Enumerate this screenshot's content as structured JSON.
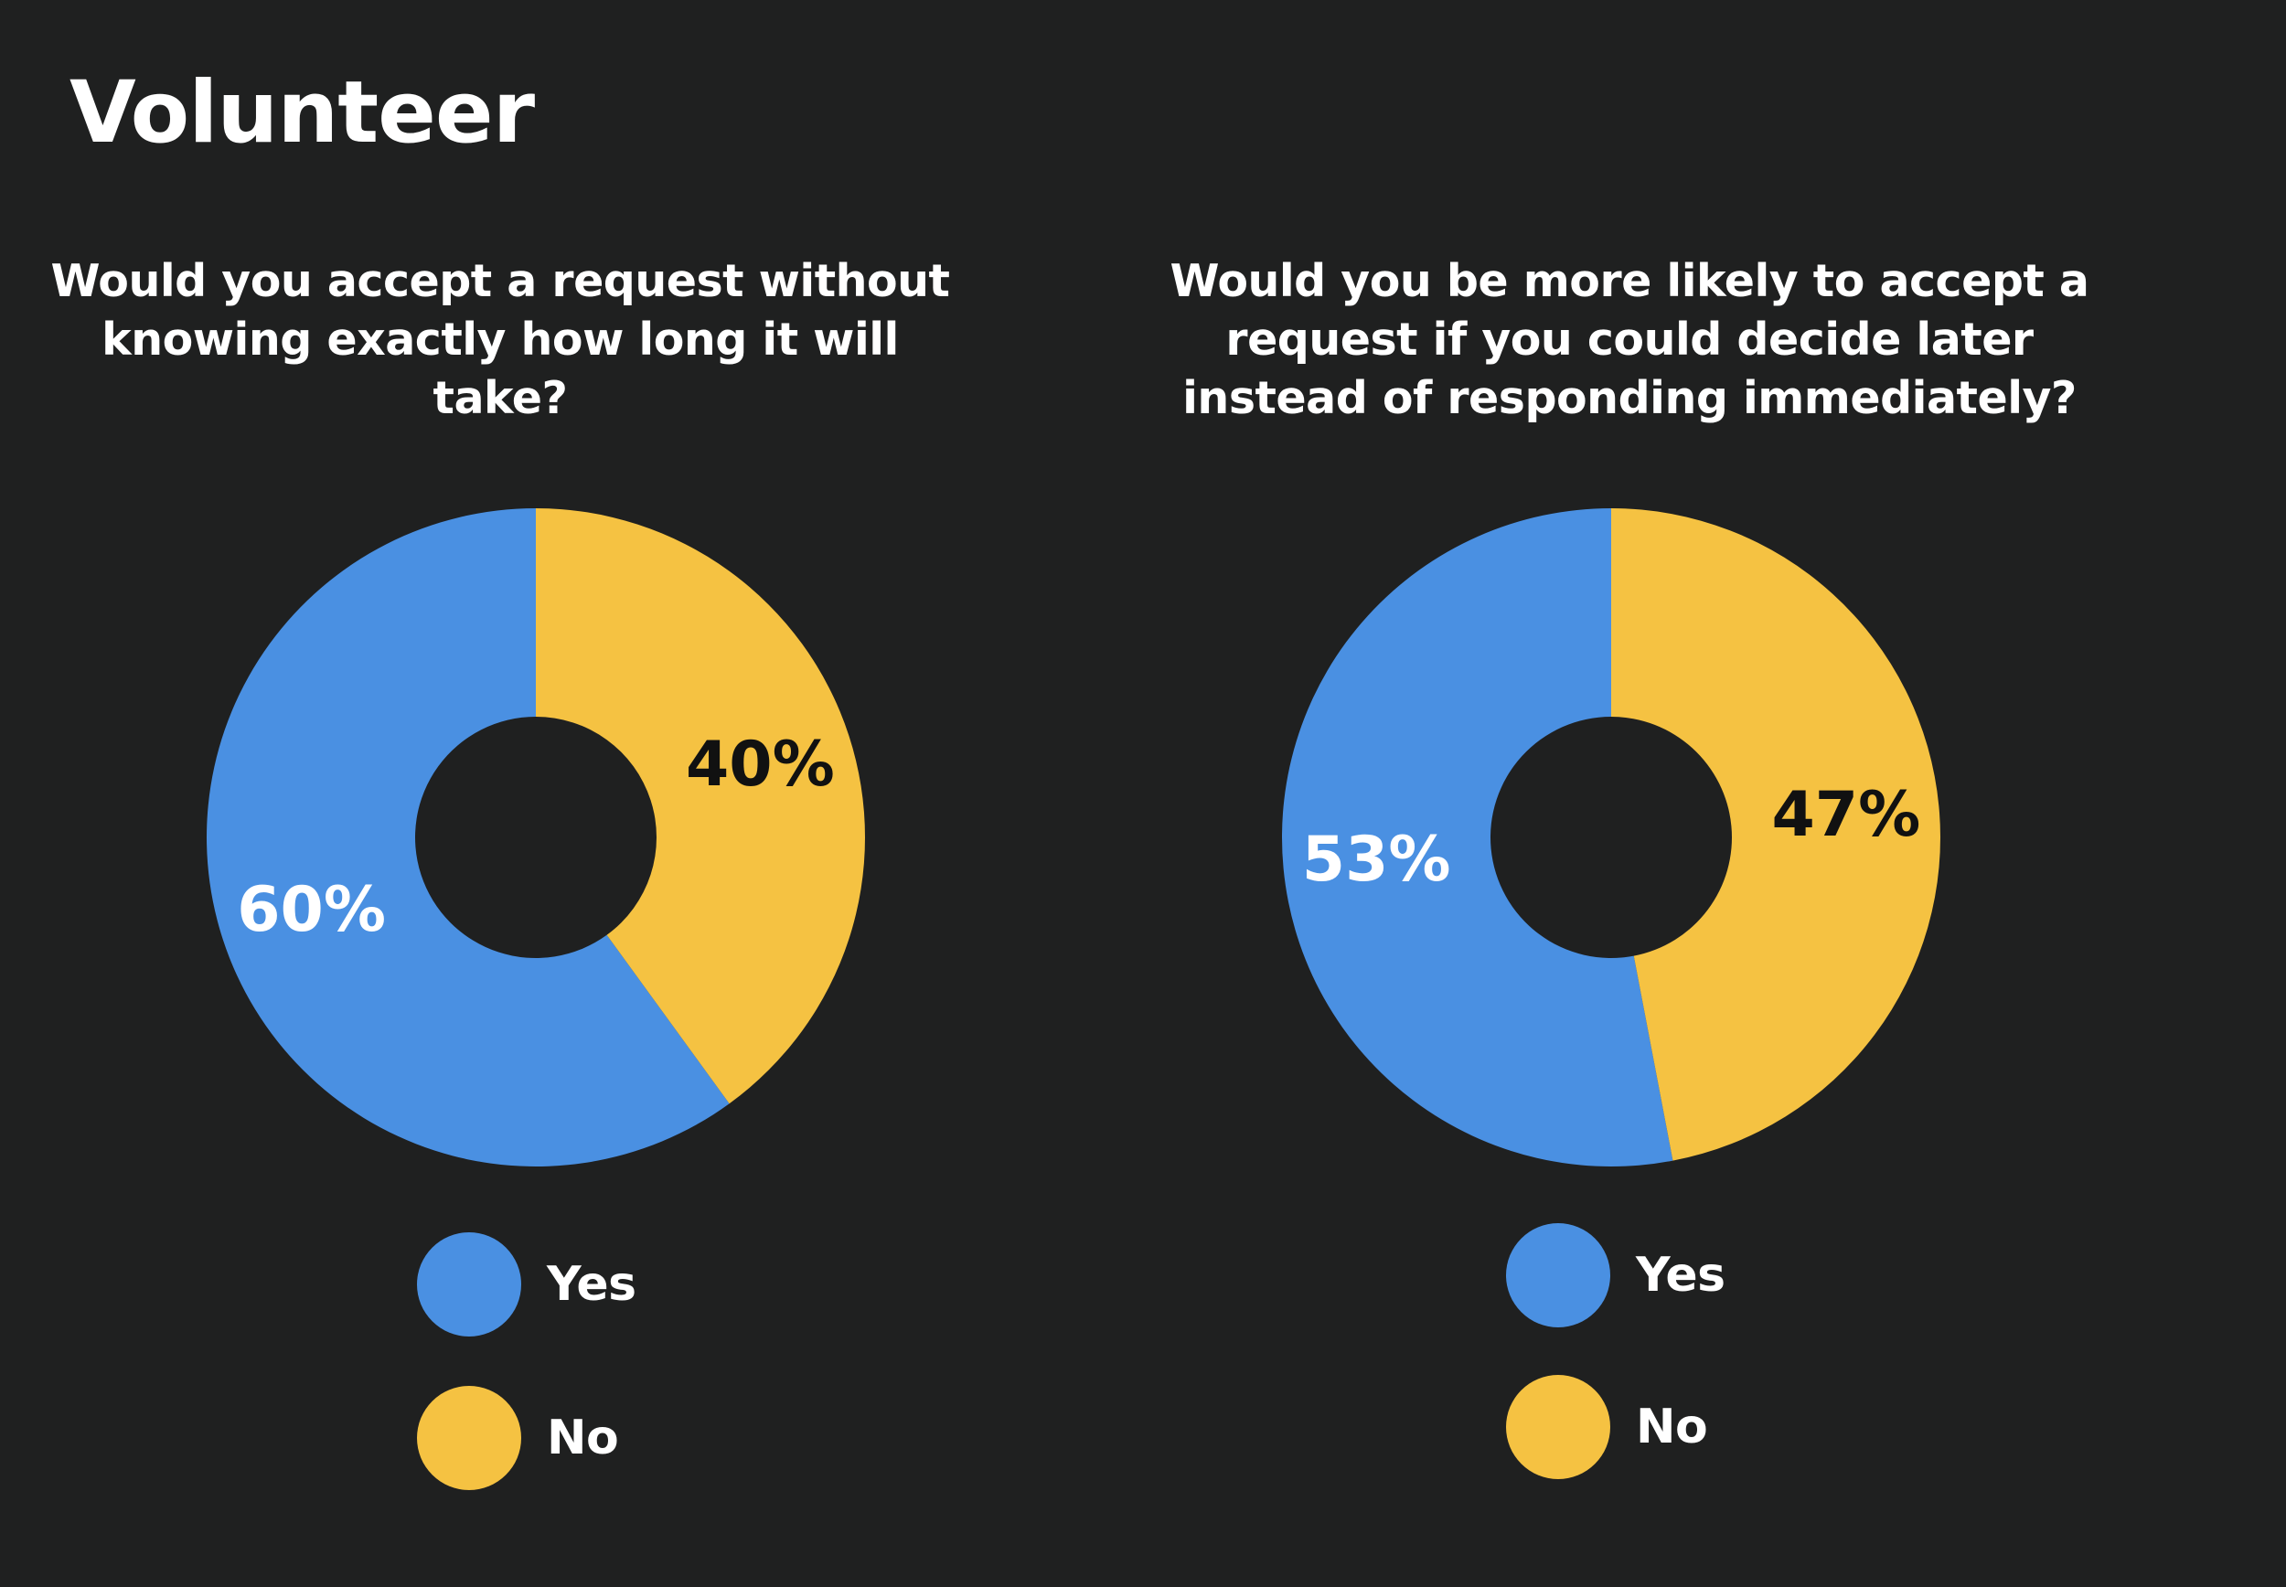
{
  "page": {
    "title": "Volunteer",
    "background": "#1f2020"
  },
  "colors": {
    "yes": "#4a90e2",
    "no": "#f5c242"
  },
  "chart_data": [
    {
      "type": "pie",
      "title": "Would you accept a request without knowing exactly how long it will take?",
      "categories": [
        "Yes",
        "No"
      ],
      "values": [
        60,
        40
      ],
      "labels": [
        "60%",
        "40%"
      ],
      "colors": [
        "#4a90e2",
        "#f5c242"
      ],
      "label_colors": [
        "#ffffff",
        "#111111"
      ],
      "donut": true,
      "legend": {
        "placement": "bottom",
        "items": [
          "Yes",
          "No"
        ]
      }
    },
    {
      "type": "pie",
      "title": "Would you be more likely to accept a request if you could decide later instead of responding immediately?",
      "categories": [
        "Yes",
        "No"
      ],
      "values": [
        53,
        47
      ],
      "labels": [
        "53%",
        "47%"
      ],
      "colors": [
        "#4a90e2",
        "#f5c242"
      ],
      "label_colors": [
        "#ffffff",
        "#111111"
      ],
      "donut": true,
      "legend": {
        "placement": "bottom",
        "items": [
          "Yes",
          "No"
        ]
      }
    }
  ]
}
